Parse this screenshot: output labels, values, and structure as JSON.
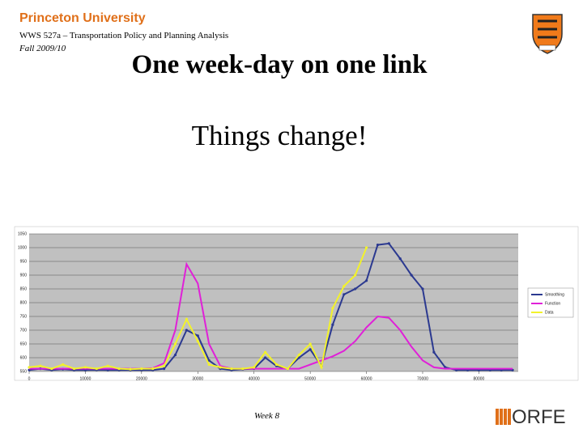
{
  "header": {
    "logo": "Princeton University",
    "course": "WWS 527a – Transportation Policy and Planning Analysis",
    "term": "Fall 2009/10"
  },
  "title": "One week-day on one link",
  "subtitle": "Things change!",
  "footer": {
    "week": "Week 8",
    "dept": "ORFE"
  },
  "chart_data": {
    "type": "line",
    "x": [
      0,
      2000,
      4000,
      6000,
      8000,
      10000,
      12000,
      14000,
      16000,
      18000,
      20000,
      22000,
      24000,
      26000,
      28000,
      30000,
      32000,
      34000,
      36000,
      38000,
      40000,
      42000,
      44000,
      46000,
      48000,
      50000,
      52000,
      54000,
      56000,
      58000,
      60000,
      62000,
      64000,
      66000,
      68000,
      70000,
      72000,
      74000,
      76000,
      78000,
      80000,
      82000,
      84000,
      86000
    ],
    "series": [
      {
        "name": "Smoothing",
        "color": "#2b3990",
        "values": [
          555,
          560,
          555,
          558,
          555,
          555,
          556,
          555,
          555,
          555,
          555,
          555,
          560,
          610,
          700,
          680,
          590,
          560,
          555,
          558,
          560,
          600,
          570,
          560,
          600,
          630,
          570,
          720,
          830,
          850,
          880,
          1010,
          1015,
          960,
          900,
          850,
          620,
          565,
          555,
          555,
          555,
          555,
          555,
          555
        ]
      },
      {
        "name": "Function",
        "color": "#e020d8",
        "values": [
          560,
          560,
          560,
          560,
          560,
          560,
          560,
          560,
          560,
          560,
          560,
          562,
          580,
          700,
          940,
          870,
          650,
          570,
          560,
          560,
          560,
          560,
          560,
          560,
          560,
          575,
          590,
          605,
          625,
          660,
          710,
          750,
          745,
          700,
          640,
          590,
          565,
          560,
          560,
          560,
          560,
          560,
          560,
          560
        ]
      },
      {
        "name": "Data",
        "color": "#f2f22a",
        "values": [
          565,
          570,
          560,
          575,
          560,
          565,
          560,
          570,
          560,
          558,
          560,
          560,
          570,
          650,
          740,
          660,
          575,
          565,
          560,
          560,
          565,
          620,
          575,
          560,
          610,
          650,
          565,
          780,
          860,
          900,
          1000,
          null,
          null,
          null,
          null,
          null,
          null,
          null,
          null,
          null,
          null,
          null,
          null,
          null
        ]
      }
    ],
    "xlim": [
      0,
      87000
    ],
    "xticks": [
      0,
      10000,
      20000,
      30000,
      40000,
      50000,
      60000,
      70000,
      80000
    ],
    "ylim": [
      550,
      1050
    ],
    "yticks": [
      550,
      600,
      650,
      700,
      750,
      800,
      850,
      900,
      950,
      1000,
      1050
    ],
    "grid": true,
    "legend": "right"
  }
}
